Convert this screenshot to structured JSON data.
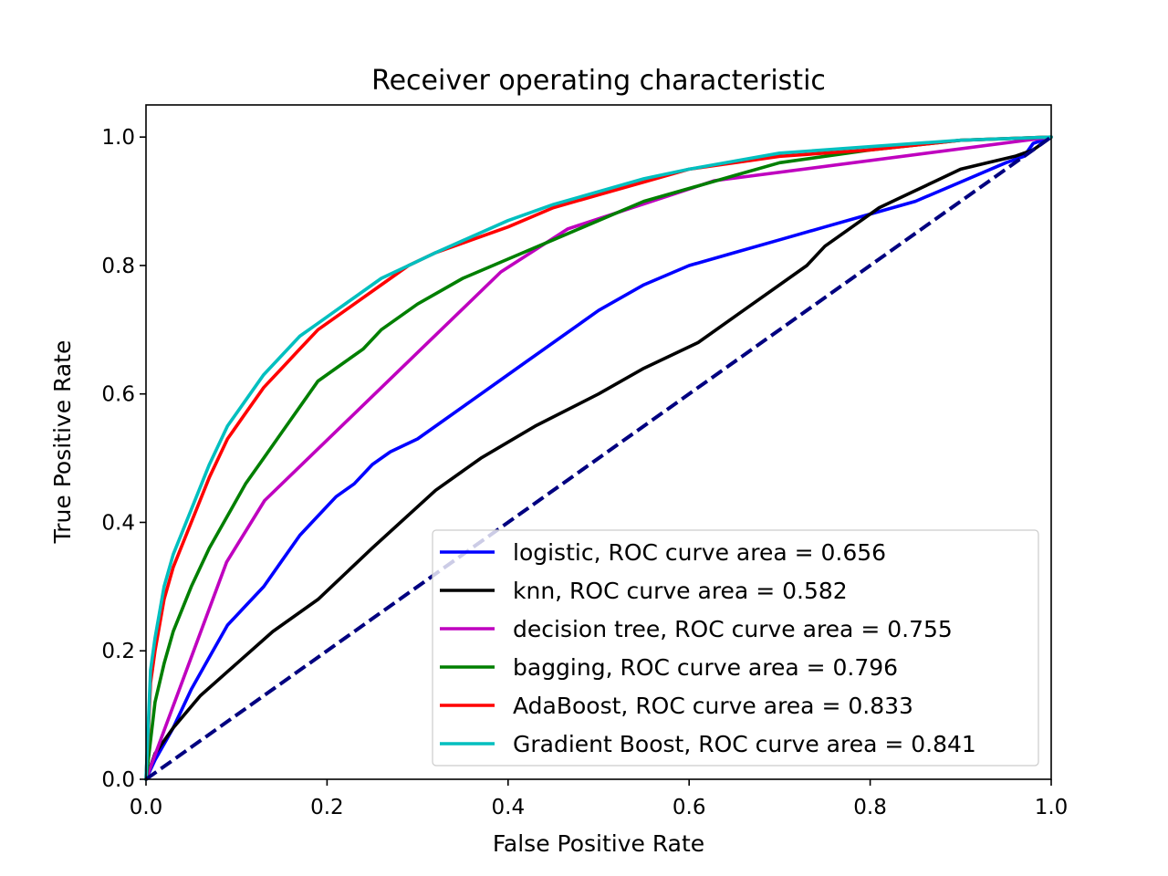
{
  "chart_data": {
    "type": "line",
    "title": "Receiver operating characteristic",
    "xlabel": "False Positive Rate",
    "ylabel": "True Positive Rate",
    "xlim": [
      0.0,
      1.0
    ],
    "ylim": [
      0.0,
      1.05
    ],
    "xticks": [
      "0.0",
      "0.2",
      "0.4",
      "0.6",
      "0.8",
      "1.0"
    ],
    "yticks": [
      "0.0",
      "0.2",
      "0.4",
      "0.6",
      "0.8",
      "1.0"
    ],
    "grid": false,
    "legend_position": "lower-right",
    "series": [
      {
        "name": "logistic, ROC curve area = 0.656",
        "color": "#0000ff",
        "x": [
          0,
          0.01,
          0.03,
          0.05,
          0.07,
          0.09,
          0.11,
          0.13,
          0.15,
          0.17,
          0.19,
          0.21,
          0.23,
          0.25,
          0.27,
          0.3,
          0.33,
          0.36,
          0.39,
          0.42,
          0.46,
          0.5,
          0.55,
          0.6,
          0.65,
          0.7,
          0.75,
          0.8,
          0.85,
          0.9,
          0.95,
          0.97,
          0.98,
          1.0
        ],
        "y": [
          0,
          0.03,
          0.08,
          0.14,
          0.19,
          0.24,
          0.27,
          0.3,
          0.34,
          0.38,
          0.41,
          0.44,
          0.46,
          0.49,
          0.51,
          0.53,
          0.56,
          0.59,
          0.62,
          0.65,
          0.69,
          0.73,
          0.77,
          0.8,
          0.82,
          0.84,
          0.86,
          0.88,
          0.9,
          0.93,
          0.96,
          0.97,
          0.99,
          1.0
        ]
      },
      {
        "name": "knn, ROC curve area = 0.582",
        "color": "#000000",
        "x": [
          0,
          0.01,
          0.03,
          0.06,
          0.1,
          0.14,
          0.19,
          0.25,
          0.32,
          0.37,
          0.43,
          0.5,
          0.55,
          0.61,
          0.66,
          0.7,
          0.73,
          0.75,
          0.78,
          0.81,
          0.84,
          0.87,
          0.9,
          0.93,
          0.96,
          0.98,
          1.0
        ],
        "y": [
          0,
          0.04,
          0.08,
          0.13,
          0.18,
          0.23,
          0.28,
          0.36,
          0.45,
          0.5,
          0.55,
          0.6,
          0.64,
          0.68,
          0.73,
          0.77,
          0.8,
          0.83,
          0.86,
          0.89,
          0.91,
          0.93,
          0.95,
          0.96,
          0.97,
          0.98,
          1.0
        ]
      },
      {
        "name": "decision tree, ROC curve area = 0.755",
        "color": "#bf00bf",
        "x": [
          0,
          0.089,
          0.131,
          0.392,
          0.466,
          0.628,
          1.0
        ],
        "y": [
          0,
          0.338,
          0.434,
          0.79,
          0.857,
          0.932,
          1.0
        ]
      },
      {
        "name": "bagging, ROC curve area = 0.796",
        "color": "#007f00",
        "x": [
          0,
          0.01,
          0.02,
          0.03,
          0.05,
          0.07,
          0.09,
          0.11,
          0.13,
          0.15,
          0.17,
          0.19,
          0.22,
          0.24,
          0.26,
          0.3,
          0.35,
          0.4,
          0.45,
          0.5,
          0.55,
          0.6,
          0.65,
          0.7,
          0.8,
          0.9,
          1.0
        ],
        "y": [
          0,
          0.12,
          0.18,
          0.23,
          0.3,
          0.36,
          0.41,
          0.46,
          0.5,
          0.54,
          0.58,
          0.62,
          0.65,
          0.67,
          0.7,
          0.74,
          0.78,
          0.81,
          0.84,
          0.87,
          0.9,
          0.92,
          0.94,
          0.96,
          0.98,
          0.995,
          1.0
        ]
      },
      {
        "name": "AdaBoost, ROC curve area = 0.833",
        "color": "#ff0000",
        "x": [
          0,
          0.005,
          0.01,
          0.02,
          0.03,
          0.05,
          0.07,
          0.09,
          0.11,
          0.13,
          0.15,
          0.17,
          0.19,
          0.21,
          0.23,
          0.26,
          0.29,
          0.32,
          0.36,
          0.4,
          0.45,
          0.5,
          0.55,
          0.6,
          0.7,
          0.8,
          0.9,
          1.0
        ],
        "y": [
          0,
          0.15,
          0.2,
          0.28,
          0.33,
          0.4,
          0.47,
          0.53,
          0.57,
          0.61,
          0.64,
          0.67,
          0.7,
          0.72,
          0.74,
          0.77,
          0.8,
          0.82,
          0.84,
          0.86,
          0.89,
          0.91,
          0.93,
          0.95,
          0.97,
          0.98,
          0.995,
          1.0
        ]
      },
      {
        "name": "Gradient Boost, ROC curve area = 0.841",
        "color": "#00bfbf",
        "x": [
          0,
          0.005,
          0.01,
          0.02,
          0.03,
          0.05,
          0.07,
          0.09,
          0.11,
          0.13,
          0.15,
          0.17,
          0.19,
          0.21,
          0.23,
          0.26,
          0.29,
          0.32,
          0.36,
          0.4,
          0.45,
          0.5,
          0.55,
          0.6,
          0.7,
          0.8,
          0.9,
          1.0
        ],
        "y": [
          0,
          0.17,
          0.22,
          0.3,
          0.35,
          0.42,
          0.49,
          0.55,
          0.59,
          0.63,
          0.66,
          0.69,
          0.71,
          0.73,
          0.75,
          0.78,
          0.8,
          0.82,
          0.845,
          0.87,
          0.895,
          0.915,
          0.935,
          0.95,
          0.975,
          0.985,
          0.995,
          1.0
        ]
      }
    ],
    "reference_line": {
      "color": "#000080",
      "style": "dashed",
      "x": [
        0,
        1
      ],
      "y": [
        0,
        1
      ]
    }
  }
}
